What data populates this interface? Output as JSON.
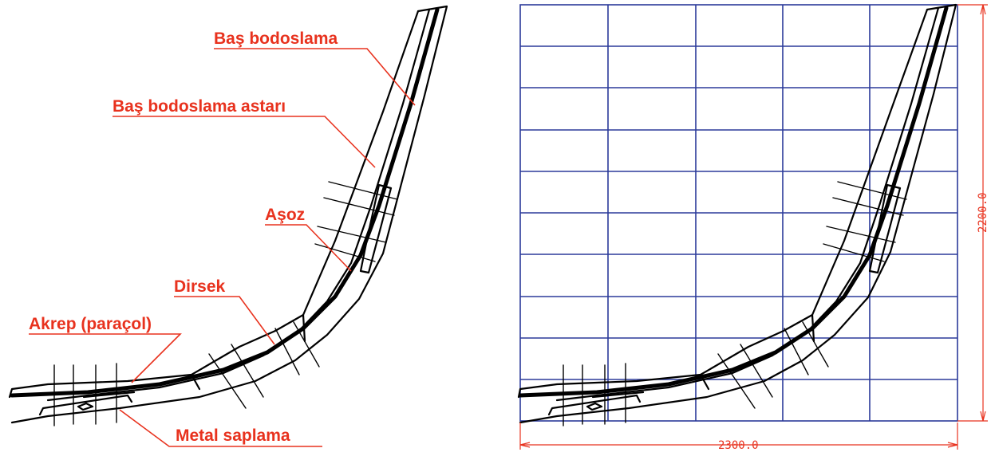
{
  "labels": {
    "bas_bodoslama": "Baş bodoslama",
    "bas_bodoslama_astari": "Baş bodoslama astarı",
    "asoz": "Aşoz",
    "dirsek": "Dirsek",
    "akrep": "Akrep (paraçol)",
    "metal_saplama": "Metal saplama"
  },
  "dimensions": {
    "width": "2300.0",
    "height": "2200.0"
  },
  "colors": {
    "label": "#e8321e",
    "grid": "#2b3a9a",
    "dimension": "#e8321e",
    "drawing": "#000000"
  }
}
